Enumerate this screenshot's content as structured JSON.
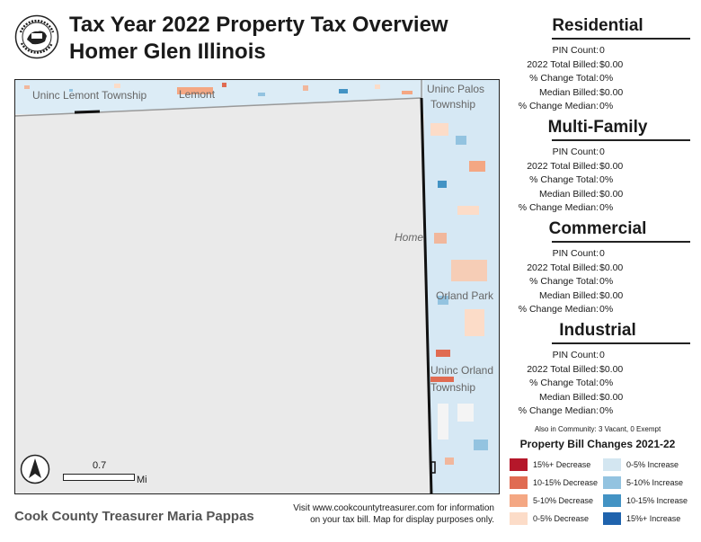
{
  "header": {
    "title_line1": "Tax Year 2022 Property Tax Overview",
    "title_line2": "Homer Glen Illinois"
  },
  "map": {
    "places": {
      "unincorporated_lemont": "Uninc Lemont Township",
      "lemont": "Lemont",
      "unincorporated_palos_1": "Uninc Palos",
      "unincorporated_palos_2": "Township",
      "homer": "Home",
      "orland_park": "Orland Park",
      "unincorporated_orland_1": "Uninc Orland",
      "unincorporated_orland_2": "Township"
    },
    "scale_value": "0.7",
    "scale_unit": "Mi",
    "colors": {
      "background": "#efefef",
      "parcel_blue": "#cfe3f1",
      "parcel_orange": "#f1b79c",
      "boundary": "#111111"
    }
  },
  "sections": [
    {
      "title": "Residential",
      "rows": [
        {
          "label": "PIN Count:",
          "value": "0"
        },
        {
          "label": "2022 Total Billed:",
          "value": "$0.00"
        },
        {
          "label": "% Change Total:",
          "value": "0%"
        },
        {
          "label": "Median Billed:",
          "value": "$0.00"
        },
        {
          "label": "% Change Median:",
          "value": "0%"
        }
      ]
    },
    {
      "title": "Multi-Family",
      "rows": [
        {
          "label": "PIN Count:",
          "value": "0"
        },
        {
          "label": "2022 Total Billed:",
          "value": "$0.00"
        },
        {
          "label": "% Change Total:",
          "value": "0%"
        },
        {
          "label": "Median Billed:",
          "value": "$0.00"
        },
        {
          "label": "% Change Median:",
          "value": "0%"
        }
      ]
    },
    {
      "title": "Commercial",
      "rows": [
        {
          "label": "PIN Count:",
          "value": "0"
        },
        {
          "label": "2022 Total Billed:",
          "value": "$0.00"
        },
        {
          "label": "% Change Total:",
          "value": "0%"
        },
        {
          "label": "Median Billed:",
          "value": "$0.00"
        },
        {
          "label": "% Change Median:",
          "value": "0%"
        }
      ]
    },
    {
      "title": "Industrial",
      "rows": [
        {
          "label": "PIN Count:",
          "value": "0"
        },
        {
          "label": "2022 Total Billed:",
          "value": "$0.00"
        },
        {
          "label": "% Change Total:",
          "value": "0%"
        },
        {
          "label": "Median Billed:",
          "value": "$0.00"
        },
        {
          "label": "% Change Median:",
          "value": "0%"
        }
      ]
    }
  ],
  "also_in_community": "Also in Community: 3 Vacant, 0 Exempt",
  "legend": {
    "title": "Property Bill Changes 2021-22",
    "decreases": [
      {
        "label": "15%+ Decrease",
        "color": "#b5172a"
      },
      {
        "label": "10-15% Decrease",
        "color": "#e06b52"
      },
      {
        "label": "5-10% Decrease",
        "color": "#f4a783"
      },
      {
        "label": "0-5% Decrease",
        "color": "#fcdcc8"
      }
    ],
    "increases": [
      {
        "label": "0-5% Increase",
        "color": "#d3e6f1"
      },
      {
        "label": "5-10% Increase",
        "color": "#93c3e0"
      },
      {
        "label": "10-15% Increase",
        "color": "#4393c4"
      },
      {
        "label": "15%+ Increase",
        "color": "#1f63ad"
      }
    ]
  },
  "footer": {
    "treasurer": "Cook County Treasurer Maria Pappas",
    "info_line1": "Visit www.cookcountytreasurer.com for information",
    "info_line2": "on your tax bill. Map for display purposes only."
  }
}
